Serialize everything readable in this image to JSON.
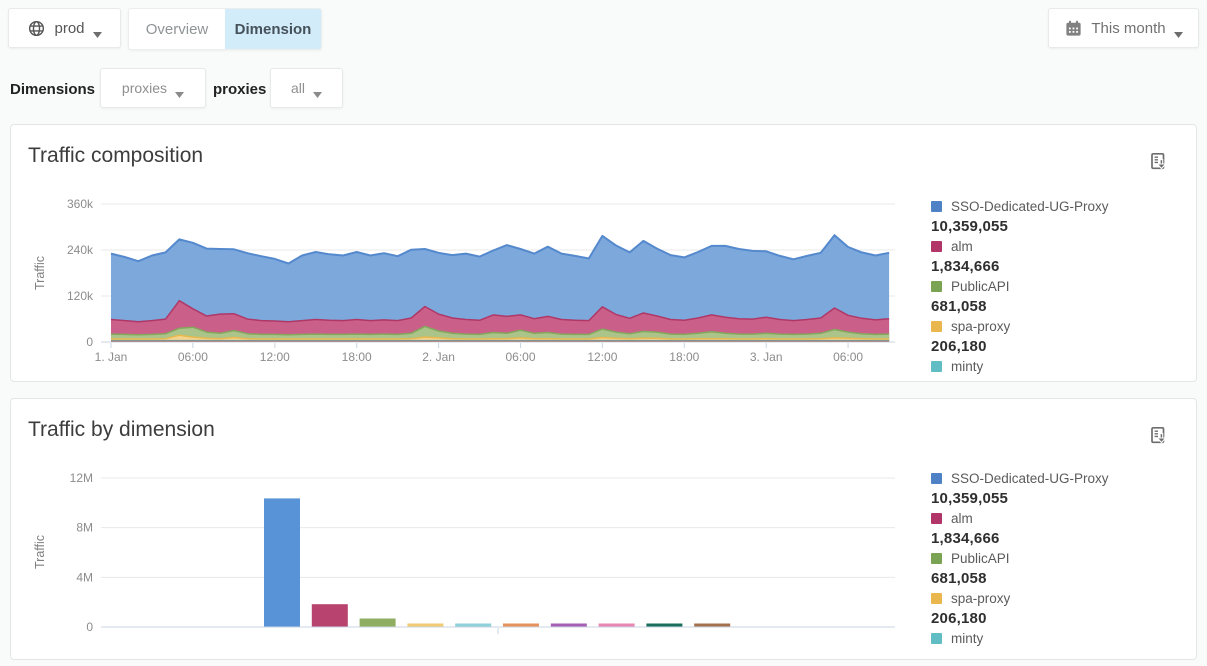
{
  "header": {
    "env_button": {
      "label": "prod"
    },
    "tabs": [
      {
        "label": "Overview",
        "active": false
      },
      {
        "label": "Dimension",
        "active": true
      }
    ],
    "date_button": {
      "label": "This month"
    },
    "active_tab_color": "#d3ecf9"
  },
  "filters": {
    "section_label": "Dimensions",
    "dimension_dropdown": {
      "value": "proxies"
    },
    "dimension_name_label": "proxies",
    "filter_dropdown": {
      "value": "all"
    }
  },
  "panels": [
    {
      "title": "Traffic composition",
      "legend": [
        {
          "name": "SSO-Dedicated-UG-Proxy",
          "value": "10,359,055",
          "color": "#4f81c7"
        },
        {
          "name": "alm",
          "value": "1,834,666",
          "color": "#b13568"
        },
        {
          "name": "PublicAPI",
          "value": "681,058",
          "color": "#7aa353"
        },
        {
          "name": "spa-proxy",
          "value": "206,180",
          "color": "#e9b74e"
        },
        {
          "name": "minty",
          "value": "",
          "color": "#5fbdc3"
        }
      ]
    },
    {
      "title": "Traffic by dimension",
      "legend": [
        {
          "name": "SSO-Dedicated-UG-Proxy",
          "value": "10,359,055",
          "color": "#4f81c7"
        },
        {
          "name": "alm",
          "value": "1,834,666",
          "color": "#b13568"
        },
        {
          "name": "PublicAPI",
          "value": "681,058",
          "color": "#7aa353"
        },
        {
          "name": "spa-proxy",
          "value": "206,180",
          "color": "#e9b74e"
        },
        {
          "name": "minty",
          "value": "",
          "color": "#5fbdc3"
        }
      ]
    }
  ],
  "chart_data": [
    {
      "type": "area",
      "title": "Traffic composition",
      "ylabel": "Traffic",
      "ylim": [
        0,
        360000
      ],
      "yticks": [
        {
          "label": "0",
          "value": 0
        },
        {
          "label": "120k",
          "value": 120000
        },
        {
          "label": "240k",
          "value": 240000
        },
        {
          "label": "360k",
          "value": 360000
        }
      ],
      "x_start": "1. Jan 00:00",
      "x_step_hours": 1,
      "points": 58,
      "xticks": [
        "1. Jan",
        "06:00",
        "12:00",
        "18:00",
        "2. Jan",
        "06:00",
        "12:00",
        "18:00",
        "3. Jan",
        "06:00"
      ],
      "stacked": true,
      "stack_order": "top_to_bottom",
      "legend_position": "right",
      "grid": true,
      "series": [
        {
          "name": "SSO-Dedicated-UG-Proxy",
          "stroke": "#5589cd",
          "fill": "#7da8dc",
          "values": [
            172000,
            166000,
            158000,
            170000,
            174000,
            160000,
            172000,
            176000,
            170000,
            168000,
            172000,
            168000,
            162000,
            152000,
            170000,
            176000,
            172000,
            170000,
            176000,
            170000,
            174000,
            168000,
            178000,
            150000,
            160000,
            164000,
            172000,
            166000,
            168000,
            186000,
            172000,
            170000,
            182000,
            172000,
            168000,
            162000,
            185000,
            180000,
            172000,
            188000,
            176000,
            168000,
            164000,
            172000,
            180000,
            186000,
            182000,
            178000,
            172000,
            166000,
            160000,
            166000,
            170000,
            190000,
            178000,
            172000,
            168000,
            172000
          ]
        },
        {
          "name": "alm",
          "stroke": "#af3867",
          "fill": "#ca6089",
          "values": [
            38000,
            36000,
            34000,
            36000,
            38000,
            72000,
            48000,
            42000,
            50000,
            44000,
            38000,
            36000,
            35000,
            34000,
            36000,
            38000,
            37000,
            36000,
            38000,
            36000,
            37000,
            36000,
            40000,
            52000,
            44000,
            40000,
            38000,
            37000,
            46000,
            44000,
            40000,
            38000,
            42000,
            38000,
            37000,
            36000,
            58000,
            46000,
            40000,
            48000,
            42000,
            38000,
            37000,
            40000,
            44000,
            42000,
            40000,
            39000,
            42000,
            38000,
            36000,
            38000,
            40000,
            56000,
            44000,
            40000,
            38000,
            40000
          ]
        },
        {
          "name": "PublicAPI",
          "stroke": "#83a75c",
          "fill": "#abc489",
          "values": [
            13000,
            12000,
            11000,
            12000,
            13000,
            18000,
            26000,
            16000,
            14000,
            18000,
            13000,
            12000,
            12000,
            11000,
            12000,
            13000,
            12000,
            12000,
            13000,
            12000,
            13000,
            12000,
            14000,
            28000,
            18000,
            14000,
            13000,
            12000,
            16000,
            14000,
            20000,
            14000,
            16000,
            13000,
            12000,
            12000,
            22000,
            16000,
            13000,
            18000,
            16000,
            13000,
            12000,
            14000,
            18000,
            14000,
            13000,
            13000,
            14000,
            13000,
            12000,
            13000,
            14000,
            22000,
            16000,
            13000,
            12000,
            13000
          ]
        },
        {
          "name": "spa-proxy",
          "stroke": "#e9b94f",
          "fill": "#f4d38c",
          "values": [
            4000,
            4000,
            4000,
            4000,
            5000,
            14000,
            9000,
            6000,
            5000,
            8000,
            5000,
            4000,
            4000,
            4000,
            4000,
            4000,
            4000,
            4000,
            4000,
            4000,
            4000,
            4000,
            5000,
            9000,
            7000,
            5000,
            4000,
            4000,
            5000,
            5000,
            7000,
            5000,
            5000,
            4000,
            4000,
            4000,
            8000,
            6000,
            5000,
            6000,
            6000,
            4000,
            4000,
            5000,
            5000,
            5000,
            4000,
            4000,
            5000,
            4000,
            4000,
            4000,
            5000,
            7000,
            6000,
            5000,
            4000,
            4000
          ]
        },
        {
          "name": "minty",
          "stroke": "#6ac3c9",
          "fill": "#a8dade",
          "values": [
            2200,
            2200,
            2200,
            2200,
            2200,
            2200,
            2200,
            2200,
            2200,
            2200,
            2200,
            2200,
            2200,
            2200,
            2200,
            2200,
            2200,
            2200,
            2200,
            2200,
            2200,
            2200,
            2200,
            2200,
            2200,
            2200,
            2200,
            2200,
            2200,
            2200,
            2200,
            2200,
            2200,
            2200,
            2200,
            2200,
            2200,
            2200,
            2200,
            2200,
            2200,
            2200,
            2200,
            2200,
            2200,
            2200,
            2200,
            2200,
            2200,
            2200,
            2200,
            2200,
            2200,
            2200,
            2200,
            2200,
            2200,
            2200
          ]
        },
        {
          "name": "",
          "stroke": "#9c4838",
          "fill": "#b96a5a",
          "values": [
            1500,
            1500,
            1500,
            1500,
            1500,
            1500,
            1500,
            1500,
            1500,
            1500,
            1500,
            1500,
            1500,
            1500,
            1500,
            1500,
            1500,
            1500,
            1500,
            1500,
            1500,
            1500,
            1500,
            1500,
            1500,
            1500,
            1500,
            1500,
            1500,
            1500,
            1500,
            1500,
            1500,
            1500,
            1500,
            1500,
            1500,
            1500,
            1500,
            1500,
            1500,
            1500,
            1500,
            1500,
            1500,
            1500,
            1500,
            1500,
            1500,
            1500,
            1500,
            1500,
            1500,
            1500,
            1500,
            1500,
            1500,
            1500
          ]
        }
      ]
    },
    {
      "type": "bar",
      "title": "Traffic by dimension",
      "ylabel": "Traffic",
      "ylim": [
        0,
        12000000
      ],
      "yticks": [
        {
          "label": "0",
          "value": 0
        },
        {
          "label": "4M",
          "value": 4000000
        },
        {
          "label": "8M",
          "value": 8000000
        },
        {
          "label": "12M",
          "value": 12000000
        }
      ],
      "grid": true,
      "legend_position": "right",
      "categories": [
        "SSO-Dedicated-UG-Proxy",
        "alm",
        "PublicAPI",
        "spa-proxy",
        "minty",
        "",
        "",
        "",
        "",
        ""
      ],
      "values": [
        10359055,
        1834666,
        681058,
        206180,
        190000,
        175000,
        160000,
        150000,
        140000,
        130000
      ],
      "colors": [
        "#5793d6",
        "#b8436e",
        "#8fae62",
        "#f2ca74",
        "#8ed1d8",
        "#e6925d",
        "#a55fb5",
        "#e886b4",
        "#1a6e5e",
        "#a4714e"
      ]
    }
  ]
}
